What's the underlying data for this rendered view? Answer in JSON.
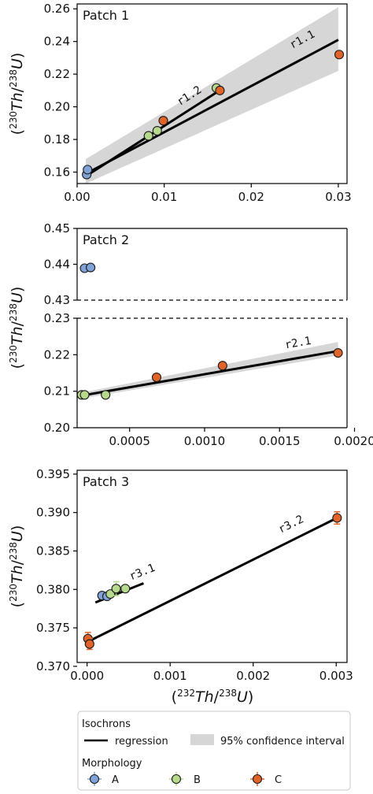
{
  "colors": {
    "A": "#7fa3d6",
    "B": "#b7d98e",
    "C": "#e0642a",
    "band": "#d6d6d6",
    "line": "#000000"
  },
  "chart_data": [
    {
      "type": "scatter",
      "title": "Patch 1",
      "ylabel": "(230Th/238U)",
      "xlim": [
        0,
        0.031
      ],
      "ylim": [
        0.153,
        0.263
      ],
      "xticks": [
        "0.00",
        "0.01",
        "0.02",
        "0.03"
      ],
      "xtick_values": [
        0,
        0.01,
        0.02,
        0.03
      ],
      "yticks": [
        "0.16",
        "0.18",
        "0.20",
        "0.22",
        "0.24",
        "0.26"
      ],
      "ytick_values": [
        0.16,
        0.18,
        0.2,
        0.22,
        0.24,
        0.26
      ],
      "points": [
        {
          "x": 0.0011,
          "y": 0.1585,
          "morph": "A"
        },
        {
          "x": 0.0012,
          "y": 0.1615,
          "morph": "A"
        },
        {
          "x": 0.0082,
          "y": 0.1822,
          "morph": "B"
        },
        {
          "x": 0.0092,
          "y": 0.1853,
          "morph": "B"
        },
        {
          "x": 0.016,
          "y": 0.2115,
          "morph": "B"
        },
        {
          "x": 0.0099,
          "y": 0.1915,
          "morph": "C"
        },
        {
          "x": 0.0164,
          "y": 0.21,
          "morph": "C"
        },
        {
          "x": 0.0301,
          "y": 0.232,
          "morph": "C"
        }
      ],
      "lines": [
        {
          "label": "r1.1",
          "x": [
            0.001,
            0.03
          ],
          "y": [
            0.159,
            0.241
          ],
          "band": {
            "x": [
              0.001,
              0.03
            ],
            "lower": [
              0.153,
              0.222
            ],
            "upper": [
              0.168,
              0.261
            ]
          }
        },
        {
          "label": "r1.2",
          "x": [
            0.001,
            0.0168
          ],
          "y": [
            0.1575,
            0.2115
          ]
        }
      ],
      "annotations": [
        {
          "text": "r1.1",
          "x": 0.0247,
          "y": 0.2355
        },
        {
          "text": "r1.2",
          "x": 0.0118,
          "y": 0.2005
        }
      ]
    },
    {
      "type": "scatter",
      "title": "Patch 2",
      "ylabel": "(230Th/238U)",
      "broken_axis": true,
      "xlim": [
        0.00015,
        0.00195
      ],
      "xticks": [
        "0.0005",
        "0.0010",
        "0.0015",
        "0.0020"
      ],
      "xtick_values": [
        0.0005,
        0.001,
        0.0015,
        0.002
      ],
      "upper": {
        "ylim": [
          0.43,
          0.45
        ],
        "yticks": [
          "0.43",
          "0.44",
          "0.45"
        ],
        "ytick_values": [
          0.43,
          0.44,
          0.45
        ],
        "points": [
          {
            "x": 0.0002,
            "y": 0.4389,
            "morph": "A"
          },
          {
            "x": 0.00024,
            "y": 0.4391,
            "morph": "A"
          }
        ]
      },
      "lower": {
        "ylim": [
          0.2,
          0.23
        ],
        "yticks": [
          "0.20",
          "0.21",
          "0.22",
          "0.23"
        ],
        "ytick_values": [
          0.2,
          0.21,
          0.22,
          0.23
        ],
        "points": [
          {
            "x": 0.00018,
            "y": 0.209,
            "morph": "B"
          },
          {
            "x": 0.0002,
            "y": 0.209,
            "morph": "B"
          },
          {
            "x": 0.00034,
            "y": 0.209,
            "morph": "B"
          },
          {
            "x": 0.00068,
            "y": 0.2138,
            "morph": "C"
          },
          {
            "x": 0.00112,
            "y": 0.217,
            "morph": "C"
          },
          {
            "x": 0.00189,
            "y": 0.2205,
            "morph": "C"
          }
        ],
        "lines": [
          {
            "label": "r2.1",
            "x": [
              0.00018,
              0.00189
            ],
            "y": [
              0.2088,
              0.221
            ],
            "band": {
              "x": [
                0.00018,
                0.00189
              ],
              "lower": [
                0.208,
                0.2198
              ],
              "upper": [
                0.2096,
                0.2235
              ]
            }
          }
        ],
        "annotations": [
          {
            "text": "r2.1",
            "x": 0.00154,
            "y": 0.2217
          }
        ]
      }
    },
    {
      "type": "scatter",
      "title": "Patch 3",
      "ylabel": "(230Th/238U)",
      "xlabel": "(232Th/238U)",
      "xlim": [
        -0.00012,
        0.00313
      ],
      "ylim": [
        0.3705,
        0.3955
      ],
      "xticks": [
        "0.000",
        "0.001",
        "0.002",
        "0.003"
      ],
      "xtick_values": [
        0,
        0.001,
        0.002,
        0.003
      ],
      "yticks": [
        "0.370",
        "0.375",
        "0.380",
        "0.385",
        "0.390",
        "0.395"
      ],
      "ytick_values": [
        0.37,
        0.375,
        0.38,
        0.385,
        0.39,
        0.395
      ],
      "points": [
        {
          "x": 0.00018,
          "y": 0.3792,
          "morph": "A",
          "err": 0.0003
        },
        {
          "x": 0.00024,
          "y": 0.3791,
          "morph": "A",
          "err": 0.0003
        },
        {
          "x": 0.00028,
          "y": 0.3794,
          "morph": "B",
          "err": 0.0004
        },
        {
          "x": 0.00035,
          "y": 0.3801,
          "morph": "B",
          "err": 0.0009
        },
        {
          "x": 0.00046,
          "y": 0.3801,
          "morph": "B",
          "err": 0.0004
        },
        {
          "x": 1e-05,
          "y": 0.3736,
          "morph": "C",
          "err": 0.0008
        },
        {
          "x": 3e-05,
          "y": 0.3729,
          "morph": "C",
          "err": 0.0007
        },
        {
          "x": 0.00301,
          "y": 0.3893,
          "morph": "C",
          "err": 0.0008
        }
      ],
      "lines": [
        {
          "label": "r3.1",
          "x": [
            0.0001,
            0.00068
          ],
          "y": [
            0.3783,
            0.3808
          ]
        },
        {
          "label": "r3.2",
          "x": [
            1e-05,
            0.00301
          ],
          "y": [
            0.3732,
            0.3893
          ]
        }
      ],
      "annotations": [
        {
          "text": "r3.1",
          "x": 0.00053,
          "y": 0.3812
        },
        {
          "text": "r3.2",
          "x": 0.00233,
          "y": 0.3873
        }
      ]
    }
  ],
  "legend": {
    "isochrons_title": "Isochrons",
    "regression_label": "regression",
    "ci_label": "95% confidence interval",
    "morphology_title": "Morphology",
    "items": [
      {
        "label": "A",
        "morph": "A"
      },
      {
        "label": "B",
        "morph": "B"
      },
      {
        "label": "C",
        "morph": "C"
      }
    ]
  }
}
